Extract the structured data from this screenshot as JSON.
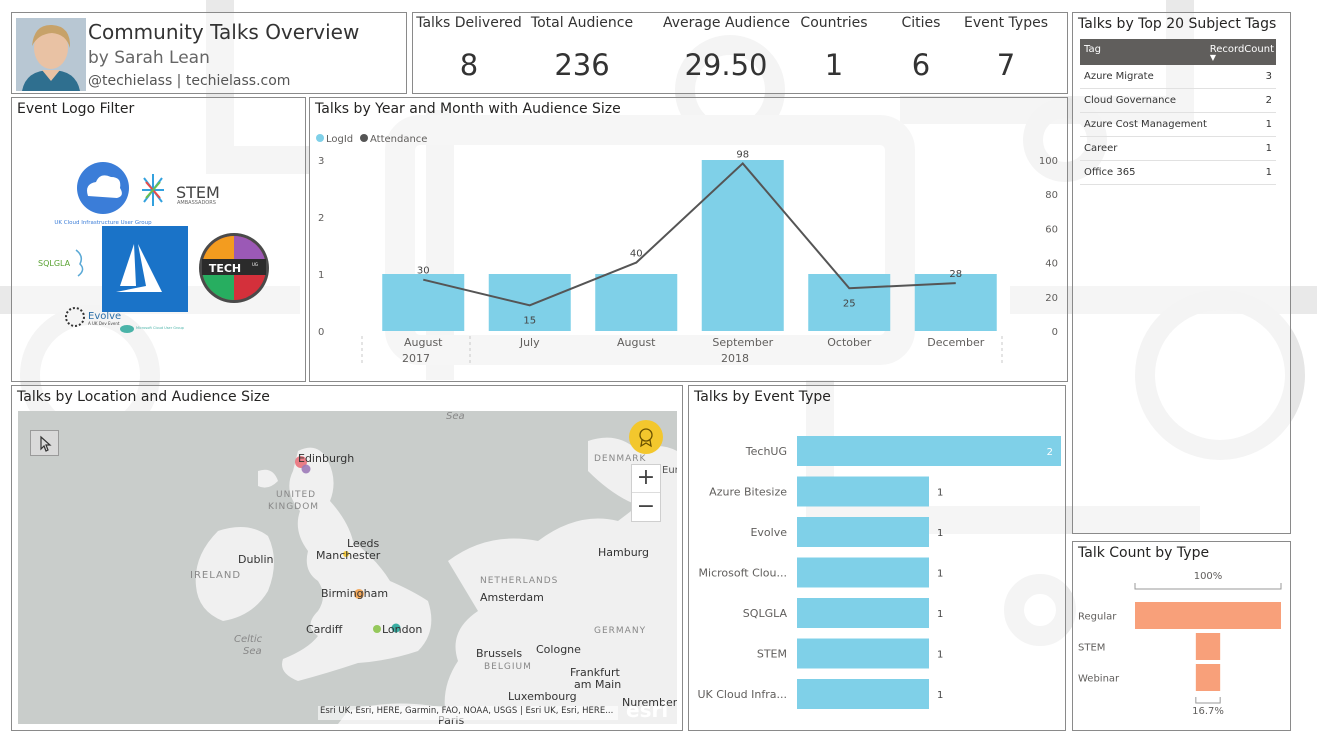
{
  "header": {
    "title": "Community Talks Overview",
    "byline": "by Sarah Lean",
    "handle": "@techielass | techielass.com"
  },
  "kpis": [
    {
      "label": "Talks Delivered",
      "value": "8"
    },
    {
      "label": "Total Audience",
      "value": "236"
    },
    {
      "label": "Average Audience",
      "value": "29.50"
    },
    {
      "label": "Countries",
      "value": "1"
    },
    {
      "label": "Cities",
      "value": "6"
    },
    {
      "label": "Event Types",
      "value": "7"
    }
  ],
  "tags_table": {
    "title": "Talks by Top 20 Subject Tags",
    "col_tag": "Tag",
    "col_count": "RecordCount",
    "rows": [
      {
        "tag": "Azure Migrate",
        "count": "3"
      },
      {
        "tag": "Cloud Governance",
        "count": "2"
      },
      {
        "tag": "Azure Cost Management",
        "count": "1"
      },
      {
        "tag": "Career",
        "count": "1"
      },
      {
        "tag": "Office 365",
        "count": "1"
      }
    ]
  },
  "logo_filter": {
    "title": "Event Logo Filter",
    "logos": {
      "ukcloud": "UK Cloud Infrastructure User Group",
      "stem": "STEM",
      "stem_sub": "AMBASSADORS",
      "sqlgla": "SQLGLA",
      "techug": "TECH",
      "techug_small": "UG",
      "evolve": "Evolve",
      "evolve_sub": "A UK Dev Event",
      "msug": "Microsoft Cloud User Group"
    }
  },
  "combo": {
    "title": "Talks by Year and Month with Audience Size",
    "legend_count": "LogId",
    "legend_attendance": "Attendance",
    "year_labels": [
      "2017",
      "2018"
    ]
  },
  "chart_data": [
    {
      "type": "bar",
      "title": "Talks by Year and Month with Audience Size",
      "categories": [
        "August",
        "July",
        "August",
        "September",
        "October",
        "December"
      ],
      "years": [
        "2017",
        "2018",
        "2018",
        "2018",
        "2018",
        "2018"
      ],
      "series": [
        {
          "name": "LogId",
          "type": "bar",
          "axis": "left",
          "values": [
            1,
            1,
            1,
            3,
            1,
            1
          ]
        },
        {
          "name": "Attendance",
          "type": "line",
          "axis": "right",
          "values": [
            30,
            15,
            40,
            98,
            25,
            28
          ]
        }
      ],
      "y_left_ticks": [
        0,
        1,
        2,
        3
      ],
      "y_right_ticks": [
        0,
        20,
        40,
        60,
        80,
        100
      ],
      "ylim_left": [
        0,
        3
      ],
      "ylim_right": [
        0,
        100
      ],
      "legend": "top-left"
    },
    {
      "type": "bar",
      "orientation": "horizontal",
      "title": "Talks by Event Type",
      "categories": [
        "TechUG",
        "Azure Bitesize",
        "Evolve",
        "Microsoft Clou...",
        "SQLGLA",
        "STEM",
        "UK Cloud Infra..."
      ],
      "values": [
        2,
        1,
        1,
        1,
        1,
        1,
        1
      ]
    },
    {
      "type": "funnel",
      "title": "Talk Count by Type",
      "categories": [
        "Regular",
        "STEM",
        "Webinar"
      ],
      "values": [
        6,
        1,
        1
      ],
      "top_label": "100%",
      "bottom_label": "16.7%"
    }
  ],
  "map": {
    "title": "Talks by Location and Audience Size",
    "labels": {
      "sea": "Sea",
      "denmark": "DENMARK",
      "europe": "Europe",
      "edinburgh": "Edinburgh",
      "uk_line1": "UNITED",
      "uk_line2": "KINGDOM",
      "leeds": "Leeds",
      "manchester": "Manchester",
      "dublin": "Dublin",
      "ireland": "IRELAND",
      "hamburg": "Hamburg",
      "netherlands": "NETHERLANDS",
      "amsterdam": "Amsterdam",
      "birmingham": "Birmingham",
      "cardiff": "Cardiff",
      "london": "London",
      "celtic1": "Celtic",
      "celtic2": "Sea",
      "germany": "GERMANY",
      "brussels": "Brussels",
      "belgium": "BELGIUM",
      "cologne": "Cologne",
      "frankfurt1": "Frankfurt",
      "frankfurt2": "am Main",
      "luxembourg": "Luxembourg",
      "nuremberg": "Nuremberg",
      "paris": "Paris"
    },
    "attribution": "Esri UK, Esri, HERE, Garmin, FAO, NOAA, USGS | Esri UK, Esri, HERE...",
    "esri": "esri",
    "zoom_in": "+",
    "zoom_out": "−"
  },
  "event_type": {
    "title": "Talks by Event Type"
  },
  "funnel": {
    "title": "Talk Count by Type"
  },
  "colors": {
    "bar": "#7fd0e8",
    "line": "#555555",
    "funnel": "#f8a07a",
    "marker_yellow": "#f3c72d"
  }
}
